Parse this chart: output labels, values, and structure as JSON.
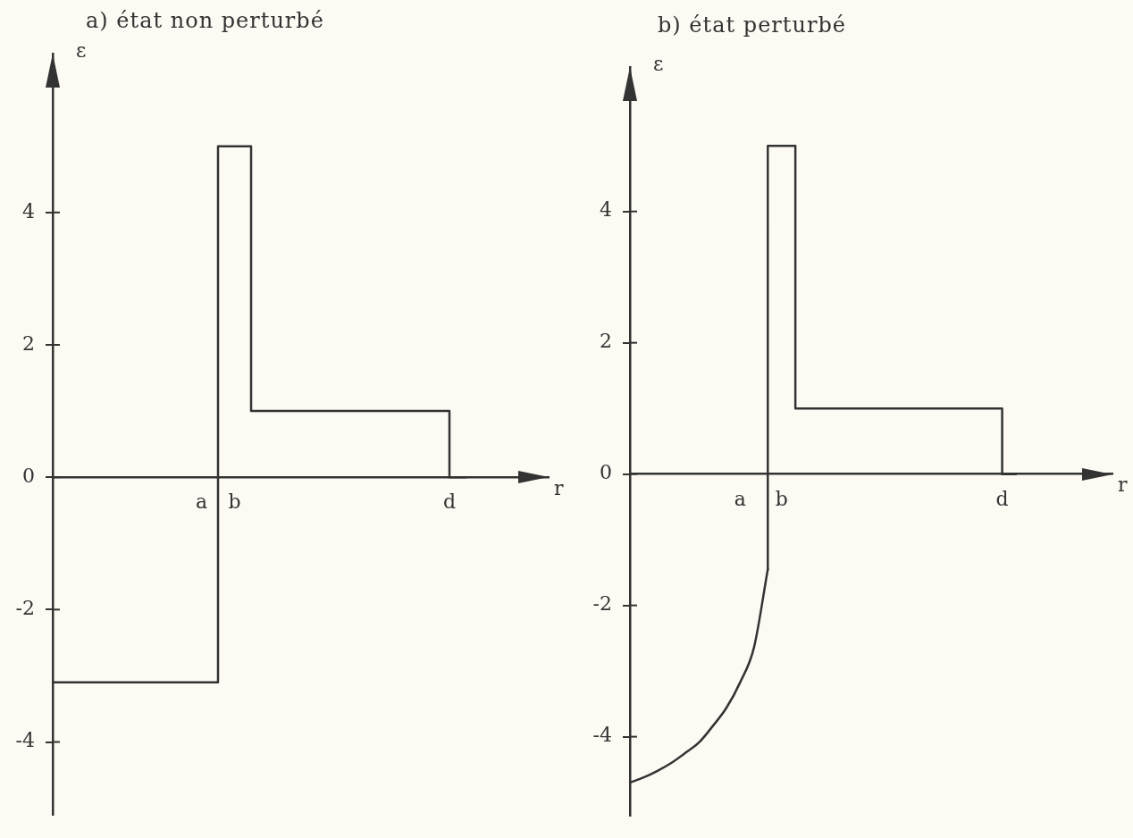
{
  "chart_data": [
    {
      "type": "step",
      "title": "a) état non perturbé",
      "xlabel": "r",
      "ylabel": "ε",
      "categories": [
        null,
        null,
        null,
        null,
        null,
        null,
        null,
        null,
        null,
        "a",
        null,
        "b",
        null,
        null,
        null,
        null,
        null,
        null,
        null,
        null,
        null,
        null,
        null,
        null,
        "d",
        null,
        null,
        null,
        null,
        null,
        null
      ],
      "values": [
        -3.1,
        -3.1,
        -3.1,
        -3.1,
        -3.1,
        -3.1,
        -3.1,
        -3.1,
        -3.1,
        -3.1,
        -3.1,
        5,
        5,
        1,
        1,
        1,
        1,
        1,
        1,
        1,
        1,
        1,
        1,
        1,
        1,
        0,
        null,
        null,
        null,
        null,
        null
      ],
      "color": "#333333",
      "ylim": [
        -5.1,
        6.4
      ],
      "yticks": [
        -4,
        -2,
        0,
        2,
        4
      ]
    },
    {
      "type": "line",
      "title": "b) état perturbé",
      "xlabel": "r",
      "ylabel": "ε",
      "categories": [
        null,
        null,
        null,
        null,
        null,
        null,
        null,
        null,
        "a",
        null,
        null,
        "b",
        null,
        null,
        null,
        null,
        null,
        null,
        null,
        null,
        null,
        null,
        null,
        null,
        null,
        null,
        null,
        "d",
        null,
        null,
        null,
        null,
        null,
        null,
        null,
        null
      ],
      "series": [
        {
          "type": "line",
          "color": "#333333",
          "values": [
            -4.7,
            -4.62,
            -4.52,
            -4.4,
            -4.25,
            -4.09,
            -3.84,
            -3.56,
            -3.17,
            -2.64,
            -1.45,
            null,
            null,
            null,
            null,
            null,
            null,
            null,
            null,
            null,
            null,
            null,
            null,
            null,
            null,
            null,
            null,
            null,
            null,
            null,
            null,
            null,
            null,
            null,
            null,
            null
          ]
        },
        {
          "type": "step",
          "color": "#333333",
          "values": [
            null,
            null,
            null,
            null,
            null,
            null,
            null,
            null,
            null,
            null,
            -1.45,
            5,
            5,
            1,
            1,
            1,
            1,
            1,
            1,
            1,
            1,
            1,
            1,
            1,
            1,
            1,
            1,
            1,
            0,
            null,
            null,
            null,
            null,
            null,
            null,
            null
          ]
        }
      ],
      "ylim": [
        -5.2,
        6.2
      ],
      "yticks": [
        -4,
        -2,
        0,
        2,
        4
      ]
    }
  ]
}
